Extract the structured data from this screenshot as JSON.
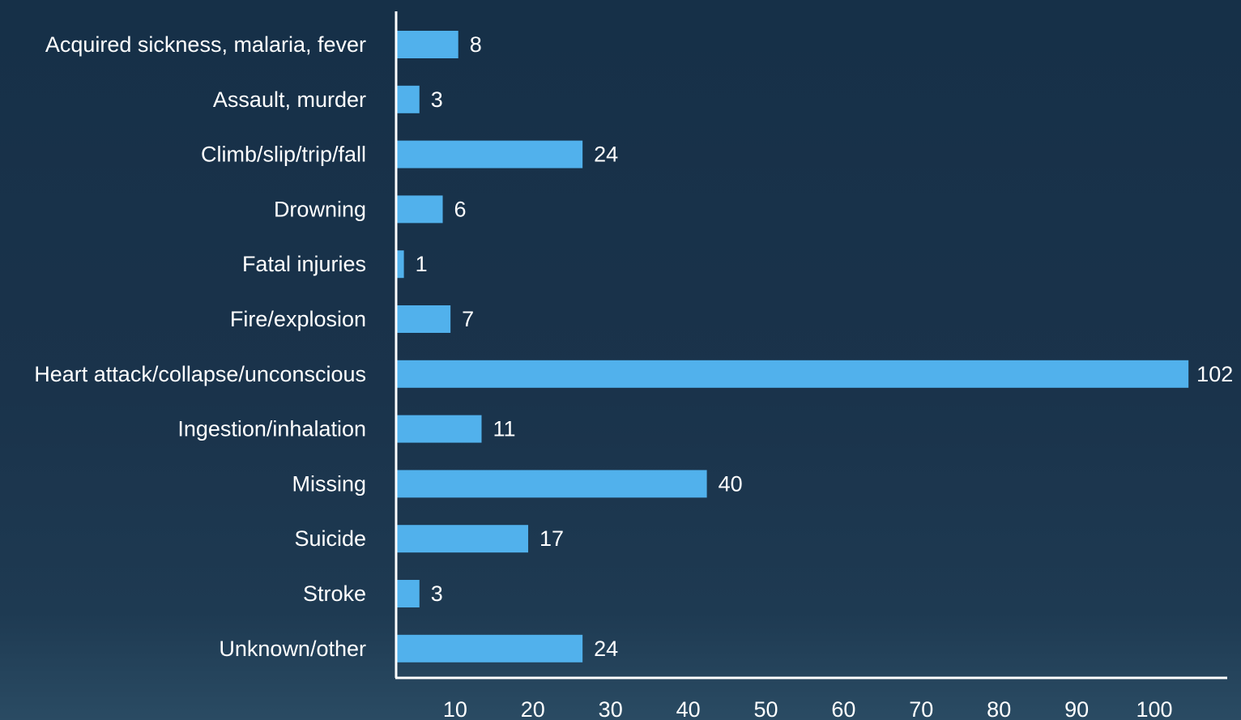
{
  "chart_data": {
    "type": "bar",
    "orientation": "horizontal",
    "categories": [
      "Acquired sickness, malaria, fever",
      "Assault, murder",
      "Climb/slip/trip/fall",
      "Drowning",
      "Fatal injuries",
      "Fire/explosion",
      "Heart attack/collapse/unconscious",
      "Ingestion/inhalation",
      "Missing",
      "Suicide",
      "Stroke",
      "Unknown/other"
    ],
    "values": [
      8,
      3,
      24,
      6,
      1,
      7,
      102,
      11,
      40,
      17,
      3,
      24
    ],
    "value_labels": [
      "8",
      "3",
      "24",
      "6",
      "1",
      "7",
      "102",
      "11",
      "40",
      "17",
      "3",
      "24"
    ],
    "x_ticks": [
      "10",
      "20",
      "30",
      "40",
      "50",
      "60",
      "70",
      "80",
      "90",
      "100"
    ],
    "xlim": [
      0,
      104
    ],
    "title": "",
    "xlabel": "",
    "ylabel": "",
    "grid": false,
    "bar_color": "#51b1ec",
    "axis_color": "#ffffff",
    "text_color": "#ffffff"
  }
}
